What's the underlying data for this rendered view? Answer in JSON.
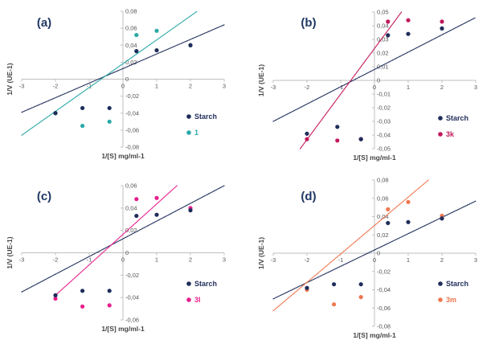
{
  "chart_data": [
    {
      "type": "scatter",
      "panel_label": "(a)",
      "xlabel": "1/[S] mg/ml-1",
      "ylabel": "1/V (UE-1)",
      "xlim": [
        -3,
        3
      ],
      "ylim": [
        -0.08,
        0.08
      ],
      "xticks": [
        -3,
        -2,
        -1,
        0,
        1,
        2,
        3
      ],
      "yticks": [
        -0.08,
        -0.06,
        -0.04,
        -0.02,
        0,
        0.02,
        0.04,
        0.06,
        0.08
      ],
      "ytick_labels": [
        "-0,08",
        "-0,06",
        "-0,04",
        "-0,02",
        "0",
        "0,02",
        "0,04",
        "0,06",
        "0,08"
      ],
      "legend_position": "bottom-right",
      "series": [
        {
          "name": "Starch",
          "color": "#1f2d5a",
          "x": [
            -2,
            -1.2,
            -0.4,
            0.4,
            1,
            2
          ],
          "y": [
            -0.04,
            -0.034,
            -0.034,
            0.033,
            0.034,
            0.04
          ],
          "trendline": {
            "x": [
              -3,
              3
            ],
            "y": [
              -0.039,
              0.064
            ]
          }
        },
        {
          "name": "1",
          "color": "#2ba8a8",
          "x": [
            -2,
            -1.2,
            -0.4,
            0.4,
            1,
            2
          ],
          "y": [
            -0.04,
            -0.055,
            -0.05,
            0.052,
            0.057,
            0.04
          ],
          "trendline": {
            "x": [
              -3,
              2.2
            ],
            "y": [
              -0.066,
              0.08
            ]
          }
        }
      ]
    },
    {
      "type": "scatter",
      "panel_label": "(b)",
      "xlabel": "1/[S] mg/ml-1",
      "ylabel": "1/V (UE-1)",
      "xlim": [
        -3,
        3
      ],
      "ylim": [
        -0.05,
        0.05
      ],
      "xticks": [
        -3,
        -2,
        -1,
        0,
        1,
        2,
        3
      ],
      "yticks": [
        -0.05,
        -0.04,
        -0.03,
        -0.02,
        -0.01,
        0,
        0.01,
        0.02,
        0.03,
        0.04,
        0.05
      ],
      "ytick_labels": [
        "-0,05",
        "-0,04",
        "-0,03",
        "-0,02",
        "-0,01",
        "0",
        "0,01",
        "0,02",
        "0,03",
        "0,04",
        "0,05"
      ],
      "legend_position": "bottom-right",
      "series": [
        {
          "name": "Starch",
          "color": "#1f2d5a",
          "x": [
            -2,
            -1.1,
            -0.4,
            0.4,
            1,
            2
          ],
          "y": [
            -0.039,
            -0.034,
            -0.043,
            0.033,
            0.034,
            0.038
          ],
          "trendline": {
            "x": [
              -3,
              3
            ],
            "y": [
              -0.03,
              0.046
            ]
          }
        },
        {
          "name": "3k",
          "color": "#c2185b",
          "x": [
            -2,
            -1.1,
            -0.4,
            0.4,
            1,
            2
          ],
          "y": [
            -0.043,
            -0.044,
            -0.043,
            0.043,
            0.044,
            0.043
          ],
          "trendline": {
            "x": [
              -2.2,
              0.8
            ],
            "y": [
              -0.05,
              0.05
            ]
          }
        }
      ]
    },
    {
      "type": "scatter",
      "panel_label": "(c)",
      "xlabel": "1/[S] mg/ml-1",
      "ylabel": "1/V (UE-1)",
      "xlim": [
        -3,
        3
      ],
      "ylim": [
        -0.06,
        0.06
      ],
      "xticks": [
        -3,
        -2,
        -1,
        0,
        1,
        2,
        3
      ],
      "yticks": [
        -0.06,
        -0.04,
        -0.02,
        0,
        0.02,
        0.04,
        0.06
      ],
      "ytick_labels": [
        "-0,06",
        "-0,04",
        "-0,02",
        "0",
        "0,02",
        "0,04",
        "0,06"
      ],
      "legend_position": "bottom-right",
      "series": [
        {
          "name": "Starch",
          "color": "#1f2d5a",
          "x": [
            -2,
            -1.2,
            -0.4,
            0.4,
            1,
            2
          ],
          "y": [
            -0.038,
            -0.034,
            -0.034,
            0.033,
            0.034,
            0.038
          ],
          "trendline": {
            "x": [
              -3,
              3
            ],
            "y": [
              -0.035,
              0.06
            ]
          }
        },
        {
          "name": "3l",
          "color": "#e91e8c",
          "x": [
            -2,
            -1.2,
            -0.4,
            0.4,
            1,
            2
          ],
          "y": [
            -0.041,
            -0.048,
            -0.047,
            0.048,
            0.049,
            0.04
          ],
          "trendline": {
            "x": [
              -2,
              1.6
            ],
            "y": [
              -0.038,
              0.06
            ]
          }
        }
      ]
    },
    {
      "type": "scatter",
      "panel_label": "(d)",
      "xlabel": "1/[S] mg/ml-1",
      "ylabel": "1/V (UE-1)",
      "xlim": [
        -3,
        3
      ],
      "ylim": [
        -0.08,
        0.08
      ],
      "xticks": [
        -3,
        -2,
        -1,
        0,
        1,
        2,
        3
      ],
      "yticks": [
        -0.08,
        -0.06,
        -0.04,
        -0.02,
        0,
        0.02,
        0.04,
        0.06,
        0.08
      ],
      "ytick_labels": [
        "-0,08",
        "-0,06",
        "-0,04",
        "-0,02",
        "0",
        "0,02",
        "0,04",
        "0,06",
        "0,08"
      ],
      "legend_position": "bottom-right",
      "series": [
        {
          "name": "Starch",
          "color": "#1f2d5a",
          "x": [
            -2,
            -1.2,
            -0.4,
            0.4,
            1,
            2
          ],
          "y": [
            -0.038,
            -0.034,
            -0.034,
            0.033,
            0.034,
            0.038
          ],
          "trendline": {
            "x": [
              -3,
              3
            ],
            "y": [
              -0.05,
              0.057
            ]
          }
        },
        {
          "name": "3m",
          "color": "#f07850",
          "x": [
            -2,
            -1.2,
            -0.4,
            0.4,
            1,
            2
          ],
          "y": [
            -0.04,
            -0.056,
            -0.048,
            0.048,
            0.056,
            0.041
          ],
          "trendline": {
            "x": [
              -3,
              1.6
            ],
            "y": [
              -0.063,
              0.08
            ]
          }
        }
      ]
    }
  ]
}
